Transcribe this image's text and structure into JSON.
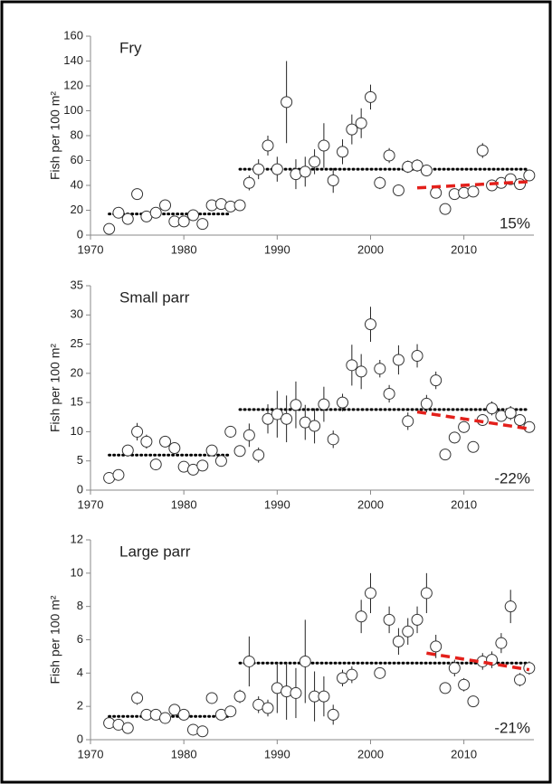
{
  "chart_data": [
    {
      "type": "scatter",
      "label": "Fry",
      "y_label": "Fish per 100 m²",
      "annotation": "15%",
      "xlim": [
        1970,
        2017.5
      ],
      "xticks": [
        1970,
        1980,
        1990,
        2000,
        2010
      ],
      "ylim": [
        0,
        160
      ],
      "yticks": [
        0,
        20,
        40,
        60,
        80,
        100,
        120,
        140,
        160
      ],
      "x": [
        1972,
        1973,
        1974,
        1975,
        1976,
        1977,
        1978,
        1979,
        1980,
        1981,
        1982,
        1983,
        1984,
        1985,
        1986,
        1987,
        1988,
        1989,
        1990,
        1991,
        1992,
        1993,
        1994,
        1995,
        1996,
        1997,
        1998,
        1999,
        2000,
        2001,
        2002,
        2003,
        2004,
        2005,
        2006,
        2007,
        2008,
        2009,
        2010,
        2011,
        2012,
        2013,
        2014,
        2015,
        2016,
        2017
      ],
      "values": [
        5,
        18,
        13,
        33,
        15,
        18,
        24,
        11,
        11,
        16,
        9,
        24,
        25,
        23,
        24,
        42,
        53,
        72,
        53,
        107,
        49,
        51,
        59,
        72,
        44,
        67,
        85,
        90,
        111,
        42,
        64,
        36,
        55,
        56,
        52,
        34,
        21,
        33,
        34,
        35,
        68,
        40,
        42,
        45,
        41,
        48
      ],
      "errors": [
        1,
        2,
        2,
        2,
        2,
        2,
        2,
        2,
        2,
        2,
        2,
        2,
        2,
        2,
        2,
        6,
        8,
        8,
        10,
        33,
        12,
        12,
        10,
        18,
        10,
        10,
        12,
        12,
        10,
        5,
        6,
        4,
        5,
        5,
        4,
        4,
        3,
        4,
        4,
        4,
        6,
        4,
        4,
        4,
        4,
        4
      ],
      "means": [
        {
          "x": [
            1972,
            1985
          ],
          "values": [
            17,
            17
          ]
        },
        {
          "x": [
            1986,
            2017
          ],
          "values": [
            53,
            53
          ]
        }
      ],
      "trend": {
        "x": [
          2005,
          2017
        ],
        "values": [
          38,
          43
        ]
      }
    },
    {
      "type": "scatter",
      "label": "Small parr",
      "y_label": "Fish per 100 m²",
      "annotation": "-22%",
      "xlim": [
        1970,
        2017.5
      ],
      "xticks": [
        1970,
        1980,
        1990,
        2000,
        2010
      ],
      "ylim": [
        0,
        35
      ],
      "yticks": [
        0,
        5,
        10,
        15,
        20,
        25,
        30,
        35
      ],
      "x": [
        1972,
        1973,
        1974,
        1975,
        1976,
        1977,
        1978,
        1979,
        1980,
        1981,
        1982,
        1983,
        1984,
        1985,
        1986,
        1987,
        1988,
        1989,
        1990,
        1991,
        1992,
        1993,
        1994,
        1995,
        1996,
        1997,
        1998,
        1999,
        2000,
        2001,
        2002,
        2003,
        2004,
        2005,
        2006,
        2007,
        2008,
        2009,
        2010,
        2011,
        2012,
        2013,
        2014,
        2015,
        2016,
        2017
      ],
      "values": [
        2.1,
        2.6,
        6.8,
        10,
        8.3,
        4.4,
        8.3,
        7.2,
        4,
        3.5,
        4.2,
        6.8,
        5,
        10,
        6.7,
        9.4,
        6,
        12.2,
        13,
        12.2,
        14.6,
        11.6,
        11,
        14.7,
        8.7,
        15,
        21.4,
        20.3,
        28.4,
        20.8,
        16.5,
        22.3,
        11.8,
        23,
        14.8,
        18.8,
        6.1,
        9,
        10.8,
        7.4,
        12,
        14,
        12.7,
        13.2,
        12,
        10.8
      ],
      "errors": [
        0.3,
        0.3,
        0.5,
        1.5,
        1.2,
        0.5,
        0.6,
        0.6,
        0.4,
        0.4,
        0.4,
        0.6,
        0.6,
        1,
        0.6,
        2,
        1.3,
        2.5,
        4,
        4,
        4,
        3,
        3,
        3,
        1.5,
        1.5,
        3.5,
        3,
        3,
        1.5,
        1.5,
        2.5,
        1.5,
        2,
        1.5,
        1.5,
        0.5,
        1,
        1,
        0.6,
        1,
        1.2,
        1,
        1.2,
        1,
        0.7
      ],
      "means": [
        {
          "x": [
            1972,
            1985
          ],
          "values": [
            6,
            6
          ]
        },
        {
          "x": [
            1986,
            2017
          ],
          "values": [
            13.8,
            13.8
          ]
        }
      ],
      "trend": {
        "x": [
          2005,
          2017
        ],
        "values": [
          13.4,
          10.5
        ]
      }
    },
    {
      "type": "scatter",
      "label": "Large parr",
      "y_label": "Fish per 100 m²",
      "annotation": "-21%",
      "xlim": [
        1970,
        2017.5
      ],
      "xticks": [
        1970,
        1980,
        1990,
        2000,
        2010
      ],
      "ylim": [
        0,
        12
      ],
      "yticks": [
        0,
        2,
        4,
        6,
        8,
        10,
        12
      ],
      "x": [
        1972,
        1973,
        1974,
        1975,
        1976,
        1977,
        1978,
        1979,
        1980,
        1981,
        1982,
        1983,
        1984,
        1985,
        1986,
        1987,
        1988,
        1989,
        1990,
        1991,
        1992,
        1993,
        1994,
        1995,
        1996,
        1997,
        1998,
        1999,
        2000,
        2001,
        2002,
        2003,
        2004,
        2005,
        2006,
        2007,
        2008,
        2009,
        2010,
        2011,
        2012,
        2013,
        2014,
        2015,
        2016,
        2017
      ],
      "values": [
        1,
        0.9,
        0.7,
        2.5,
        1.5,
        1.5,
        1.3,
        1.8,
        1.5,
        0.6,
        0.5,
        2.5,
        1.5,
        1.7,
        2.6,
        4.7,
        2.1,
        1.9,
        3.1,
        2.9,
        2.8,
        4.7,
        2.6,
        2.6,
        1.5,
        3.7,
        3.9,
        7.4,
        8.8,
        4,
        7.2,
        5.9,
        6.5,
        7.2,
        8.8,
        5.6,
        3.1,
        4.3,
        3.3,
        2.3,
        4.7,
        4.8,
        5.8,
        8,
        3.6,
        4.3
      ],
      "errors": [
        0.1,
        0.1,
        0.1,
        0.4,
        0.2,
        0.2,
        0.2,
        0.2,
        0.2,
        0.1,
        0.1,
        0.3,
        0.2,
        0.2,
        0.4,
        1.5,
        0.5,
        0.5,
        1.5,
        1.7,
        1.5,
        2.5,
        1.5,
        1.2,
        0.6,
        0.5,
        0.5,
        1,
        1.2,
        0.3,
        0.8,
        0.8,
        0.8,
        0.8,
        1.2,
        0.7,
        0.3,
        0.5,
        0.4,
        0.3,
        0.5,
        0.5,
        0.6,
        1,
        0.4,
        0.4
      ],
      "means": [
        {
          "x": [
            1972,
            1985
          ],
          "values": [
            1.4,
            1.4
          ]
        },
        {
          "x": [
            1986,
            2017
          ],
          "values": [
            4.6,
            4.6
          ]
        }
      ],
      "trend": {
        "x": [
          2006,
          2017
        ],
        "values": [
          5.2,
          4.2
        ]
      }
    }
  ]
}
